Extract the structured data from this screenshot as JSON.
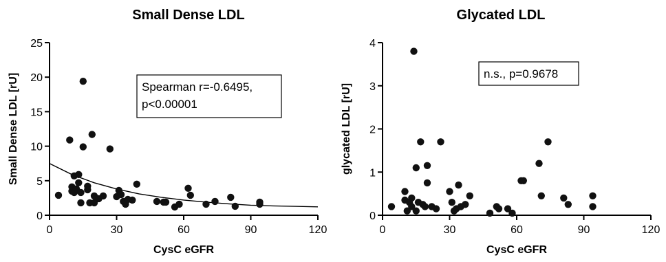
{
  "chart_data": [
    {
      "type": "scatter",
      "title": "Small Dense LDL",
      "xlabel": "CysC eGFR",
      "ylabel": "Small Dense LDL [rU]",
      "xlim": [
        0,
        120
      ],
      "ylim": [
        0,
        25
      ],
      "xticks": [
        0,
        30,
        60,
        90,
        120
      ],
      "yticks": [
        0,
        5,
        10,
        15,
        20,
        25
      ],
      "annotation_lines": [
        "Spearman r=-0.6495,",
        "p<0.00001"
      ],
      "fit_curve": {
        "type": "exponential decay",
        "points": [
          [
            0,
            7.5
          ],
          [
            10,
            5.9
          ],
          [
            20,
            4.7
          ],
          [
            30,
            3.8
          ],
          [
            40,
            3.1
          ],
          [
            50,
            2.6
          ],
          [
            60,
            2.2
          ],
          [
            70,
            1.9
          ],
          [
            80,
            1.65
          ],
          [
            90,
            1.45
          ],
          [
            100,
            1.35
          ],
          [
            110,
            1.28
          ],
          [
            120,
            1.22
          ]
        ]
      },
      "points": [
        [
          4,
          2.9
        ],
        [
          9,
          10.9
        ],
        [
          10,
          4.1
        ],
        [
          10,
          3.5
        ],
        [
          11,
          5.7
        ],
        [
          11,
          3.3
        ],
        [
          12,
          3.8
        ],
        [
          13,
          4.7
        ],
        [
          13,
          5.9
        ],
        [
          14,
          1.8
        ],
        [
          14,
          3.3
        ],
        [
          15,
          19.4
        ],
        [
          15,
          9.9
        ],
        [
          17,
          4.2
        ],
        [
          17,
          3.7
        ],
        [
          18,
          1.8
        ],
        [
          19,
          11.7
        ],
        [
          20,
          2.8
        ],
        [
          20,
          1.8
        ],
        [
          22,
          2.4
        ],
        [
          24,
          2.8
        ],
        [
          27,
          9.6
        ],
        [
          30,
          2.7
        ],
        [
          31,
          3.6
        ],
        [
          32,
          3.0
        ],
        [
          33,
          2.0
        ],
        [
          34,
          1.6
        ],
        [
          35,
          2.3
        ],
        [
          37,
          2.2
        ],
        [
          39,
          4.5
        ],
        [
          48,
          2.0
        ],
        [
          51,
          1.9
        ],
        [
          52,
          1.9
        ],
        [
          56,
          1.2
        ],
        [
          58,
          1.6
        ],
        [
          62,
          3.9
        ],
        [
          63,
          2.9
        ],
        [
          70,
          1.6
        ],
        [
          74,
          2.0
        ],
        [
          81,
          2.6
        ],
        [
          83,
          1.3
        ],
        [
          94,
          1.9
        ],
        [
          94,
          1.6
        ]
      ]
    },
    {
      "type": "scatter",
      "title": "Glycated LDL",
      "xlabel": "CysC eGFR",
      "ylabel": "glycated LDL [rU]",
      "xlim": [
        0,
        120
      ],
      "ylim": [
        0,
        4
      ],
      "xticks": [
        0,
        30,
        60,
        90,
        120
      ],
      "yticks": [
        0,
        1,
        2,
        3,
        4
      ],
      "annotation_lines": [
        "n.s., p=0.9678"
      ],
      "points": [
        [
          4,
          0.2
        ],
        [
          10,
          0.55
        ],
        [
          10,
          0.35
        ],
        [
          11,
          0.1
        ],
        [
          12,
          0.3
        ],
        [
          13,
          0.4
        ],
        [
          13,
          0.2
        ],
        [
          14,
          3.8
        ],
        [
          15,
          1.1
        ],
        [
          15,
          0.1
        ],
        [
          16,
          0.3
        ],
        [
          17,
          1.7
        ],
        [
          18,
          0.25
        ],
        [
          19,
          0.2
        ],
        [
          20,
          1.15
        ],
        [
          20,
          0.75
        ],
        [
          22,
          0.2
        ],
        [
          24,
          0.15
        ],
        [
          26,
          1.7
        ],
        [
          30,
          0.55
        ],
        [
          31,
          0.3
        ],
        [
          32,
          0.1
        ],
        [
          33,
          0.15
        ],
        [
          34,
          0.7
        ],
        [
          35,
          0.2
        ],
        [
          37,
          0.25
        ],
        [
          39,
          0.45
        ],
        [
          48,
          0.05
        ],
        [
          51,
          0.2
        ],
        [
          52,
          0.15
        ],
        [
          56,
          0.15
        ],
        [
          58,
          0.05
        ],
        [
          62,
          0.8
        ],
        [
          63,
          0.8
        ],
        [
          70,
          1.2
        ],
        [
          71,
          0.45
        ],
        [
          74,
          1.7
        ],
        [
          81,
          0.4
        ],
        [
          83,
          0.25
        ],
        [
          94,
          0.45
        ],
        [
          94,
          0.2
        ]
      ]
    }
  ]
}
